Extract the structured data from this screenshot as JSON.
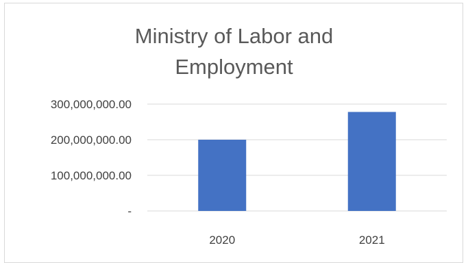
{
  "chart_data": {
    "type": "bar",
    "title_lines": [
      "Ministry of Labor and",
      "Employment"
    ],
    "categories": [
      "2020",
      "2021"
    ],
    "values": [
      200000000,
      278000000
    ],
    "ylim": [
      0,
      300000000
    ],
    "y_tick_labels": [
      "-",
      "100,000,000.00",
      "200,000,000.00",
      "300,000,000.00"
    ],
    "y_tick_values": [
      0,
      100000000,
      200000000,
      300000000
    ],
    "grid": true,
    "legend": "none",
    "colors": {
      "bar": "#4472C4",
      "grid": "#d9d9d9",
      "text": "#404040",
      "title": "#595959"
    }
  }
}
